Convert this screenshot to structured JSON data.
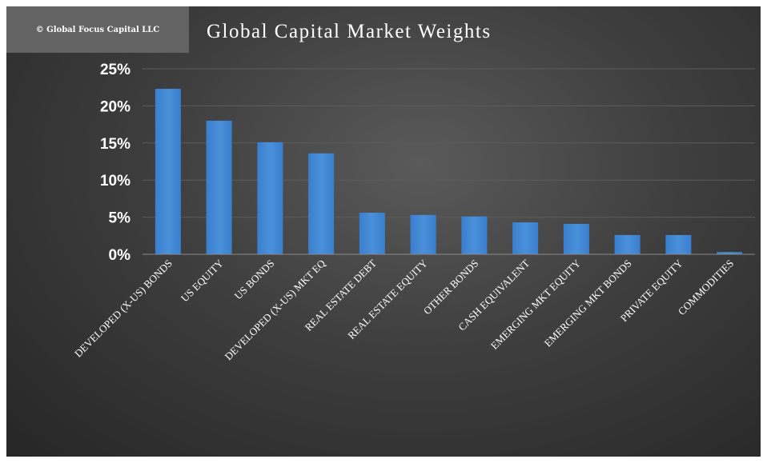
{
  "header": {
    "copyright": "© Global Focus Capital LLC"
  },
  "chart_data": {
    "type": "bar",
    "title": "Global Capital Market Weights",
    "xlabel": "",
    "ylabel": "",
    "ylim": [
      0,
      25
    ],
    "yticks": [
      "0%",
      "5%",
      "10%",
      "15%",
      "20%",
      "25%"
    ],
    "grid": true,
    "legend": "none",
    "bar_color": "#4a90d9",
    "categories": [
      "DEVELOPED (X-US) BONDS",
      "US EQUITY",
      "US BONDS",
      "DEVELOPED (X-US) MKT EQ",
      "REAL ESTATE DEBT",
      "REAL ESTATE EQUITY",
      "OTHER BONDS",
      "CASH EQUIVALENT",
      "EMERGING MKT EQUITY",
      "EMERGING MKT BONDS",
      "PRIVATE EQUITY",
      "COMMODITIES"
    ],
    "values": [
      22.3,
      18.0,
      15.1,
      13.6,
      5.6,
      5.3,
      5.1,
      4.3,
      4.1,
      2.6,
      2.6,
      0.3
    ]
  }
}
